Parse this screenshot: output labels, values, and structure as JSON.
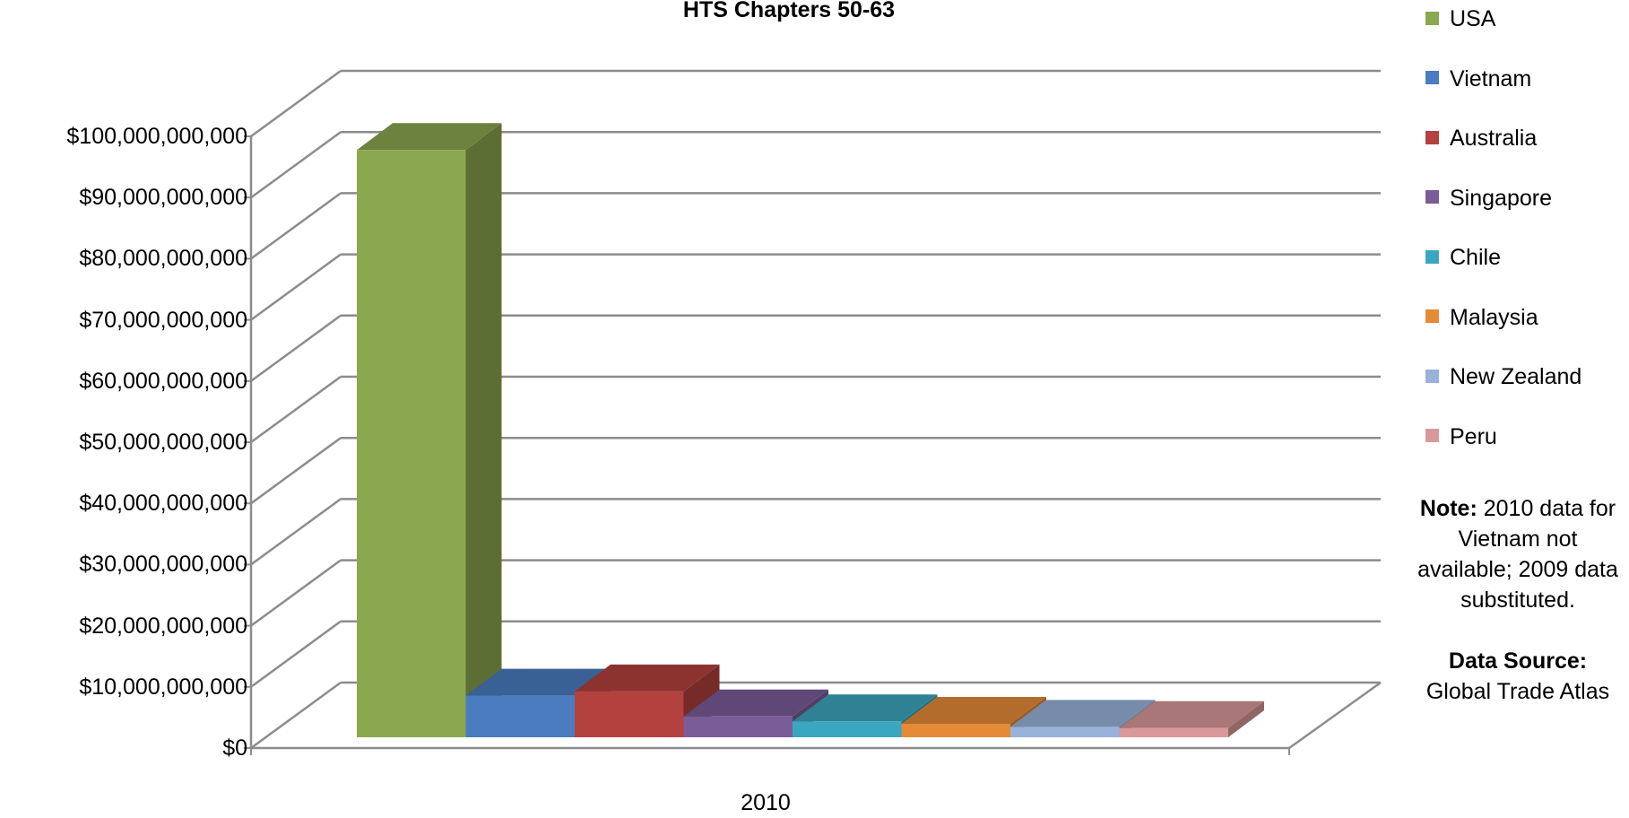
{
  "chart_data": {
    "type": "bar",
    "title": "HTS Chapters 50-63",
    "categories": [
      "2010"
    ],
    "series": [
      {
        "name": "USA",
        "values": [
          96000000000
        ],
        "color": "#8BA74F"
      },
      {
        "name": "Vietnam",
        "values": [
          6800000000
        ],
        "color": "#4A7CBF"
      },
      {
        "name": "Australia",
        "values": [
          7500000000
        ],
        "color": "#B3413E"
      },
      {
        "name": "Singapore",
        "values": [
          3400000000
        ],
        "color": "#7A5C99"
      },
      {
        "name": "Chile",
        "values": [
          2600000000
        ],
        "color": "#3BA7BE"
      },
      {
        "name": "Malaysia",
        "values": [
          2200000000
        ],
        "color": "#E58B37"
      },
      {
        "name": "New Zealand",
        "values": [
          1700000000
        ],
        "color": "#98B2DA"
      },
      {
        "name": "Peru",
        "values": [
          1500000000
        ],
        "color": "#D9999A"
      }
    ],
    "ylim": [
      0,
      100000000000
    ],
    "yticks": [
      "$0",
      "$10,000,000,000",
      "$20,000,000,000",
      "$30,000,000,000",
      "$40,000,000,000",
      "$50,000,000,000",
      "$60,000,000,000",
      "$70,000,000,000",
      "$80,000,000,000",
      "$90,000,000,000",
      "$100,000,000,000"
    ],
    "xlabel": "",
    "ylabel": "",
    "grid": true,
    "legend": "right",
    "style": "3d-clustered-column"
  },
  "notes": {
    "note_label": "Note:",
    "note_text": "2010 data for Vietnam not available; 2009 data substituted.",
    "source_label": "Data Source:",
    "source_text": "Global Trade Atlas"
  }
}
